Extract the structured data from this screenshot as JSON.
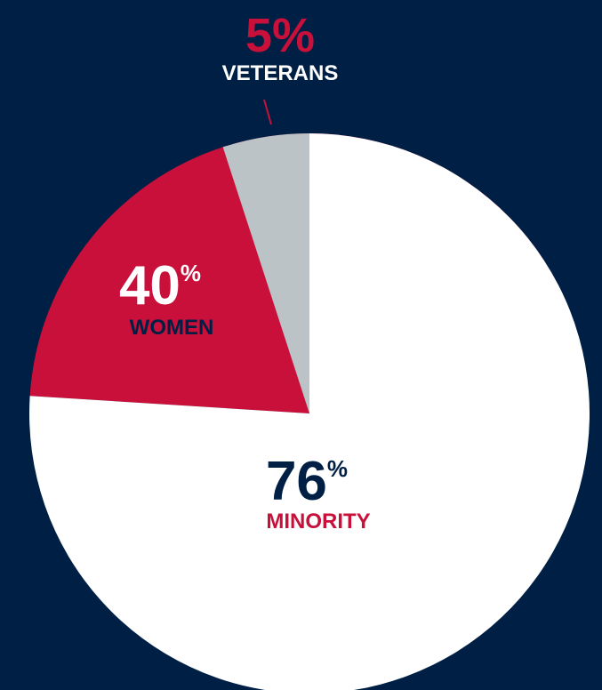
{
  "chart_data": {
    "type": "pie",
    "categories": [
      "MINORITY",
      "WOMEN",
      "VETERANS"
    ],
    "values": [
      76,
      40,
      5
    ],
    "unit": "%",
    "colors": [
      "#ffffff",
      "#c8103a",
      "#bcc3c7"
    ]
  }
}
